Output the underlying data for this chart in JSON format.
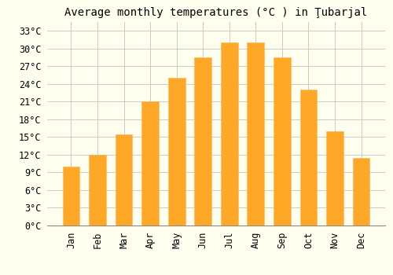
{
  "title": "Average monthly temperatures (°C ) in Ţubarjal",
  "months": [
    "Jan",
    "Feb",
    "Mar",
    "Apr",
    "May",
    "Jun",
    "Jul",
    "Aug",
    "Sep",
    "Oct",
    "Nov",
    "Dec"
  ],
  "values": [
    10,
    12,
    15.5,
    21,
    25,
    28.5,
    31,
    31,
    28.5,
    23,
    16,
    11.5
  ],
  "bar_color": "#FFA726",
  "bar_edge_color": "#FFB74D",
  "background_color": "#FFFFF0",
  "plot_bg_color": "#FFFFF0",
  "grid_color": "#CCCCCC",
  "yticks": [
    0,
    3,
    6,
    9,
    12,
    15,
    18,
    21,
    24,
    27,
    30,
    33
  ],
  "ylim": [
    0,
    34.5
  ],
  "title_fontsize": 10,
  "tick_fontsize": 8.5,
  "font_family": "monospace"
}
